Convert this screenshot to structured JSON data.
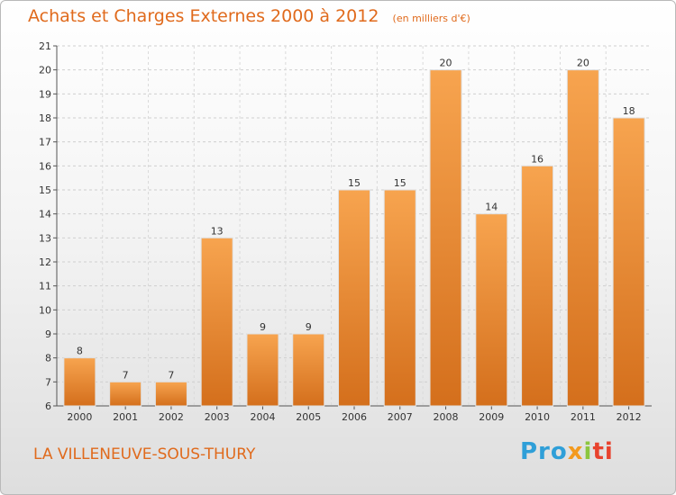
{
  "chart_data": {
    "type": "bar",
    "title": "Achats et Charges Externes 2000 à 2012",
    "unit_label": "(en milliers d'€)",
    "categories": [
      "2000",
      "2001",
      "2002",
      "2003",
      "2004",
      "2005",
      "2006",
      "2007",
      "2008",
      "2009",
      "2010",
      "2011",
      "2012"
    ],
    "values": [
      8,
      7,
      7,
      13,
      9,
      9,
      15,
      15,
      20,
      14,
      16,
      20,
      18
    ],
    "ylim": [
      6,
      21
    ],
    "yticks": [
      6,
      7,
      8,
      9,
      10,
      11,
      12,
      13,
      14,
      15,
      16,
      17,
      18,
      19,
      20,
      21
    ],
    "grid": true,
    "legend": "none",
    "bar_color_light": "#f7a44f",
    "bar_color_dark": "#d46f1c"
  },
  "footer": {
    "commune": "LA VILLENEUVE-SOUS-THURY",
    "brand_parts": [
      "Pro",
      "x",
      "i",
      "ti"
    ]
  }
}
